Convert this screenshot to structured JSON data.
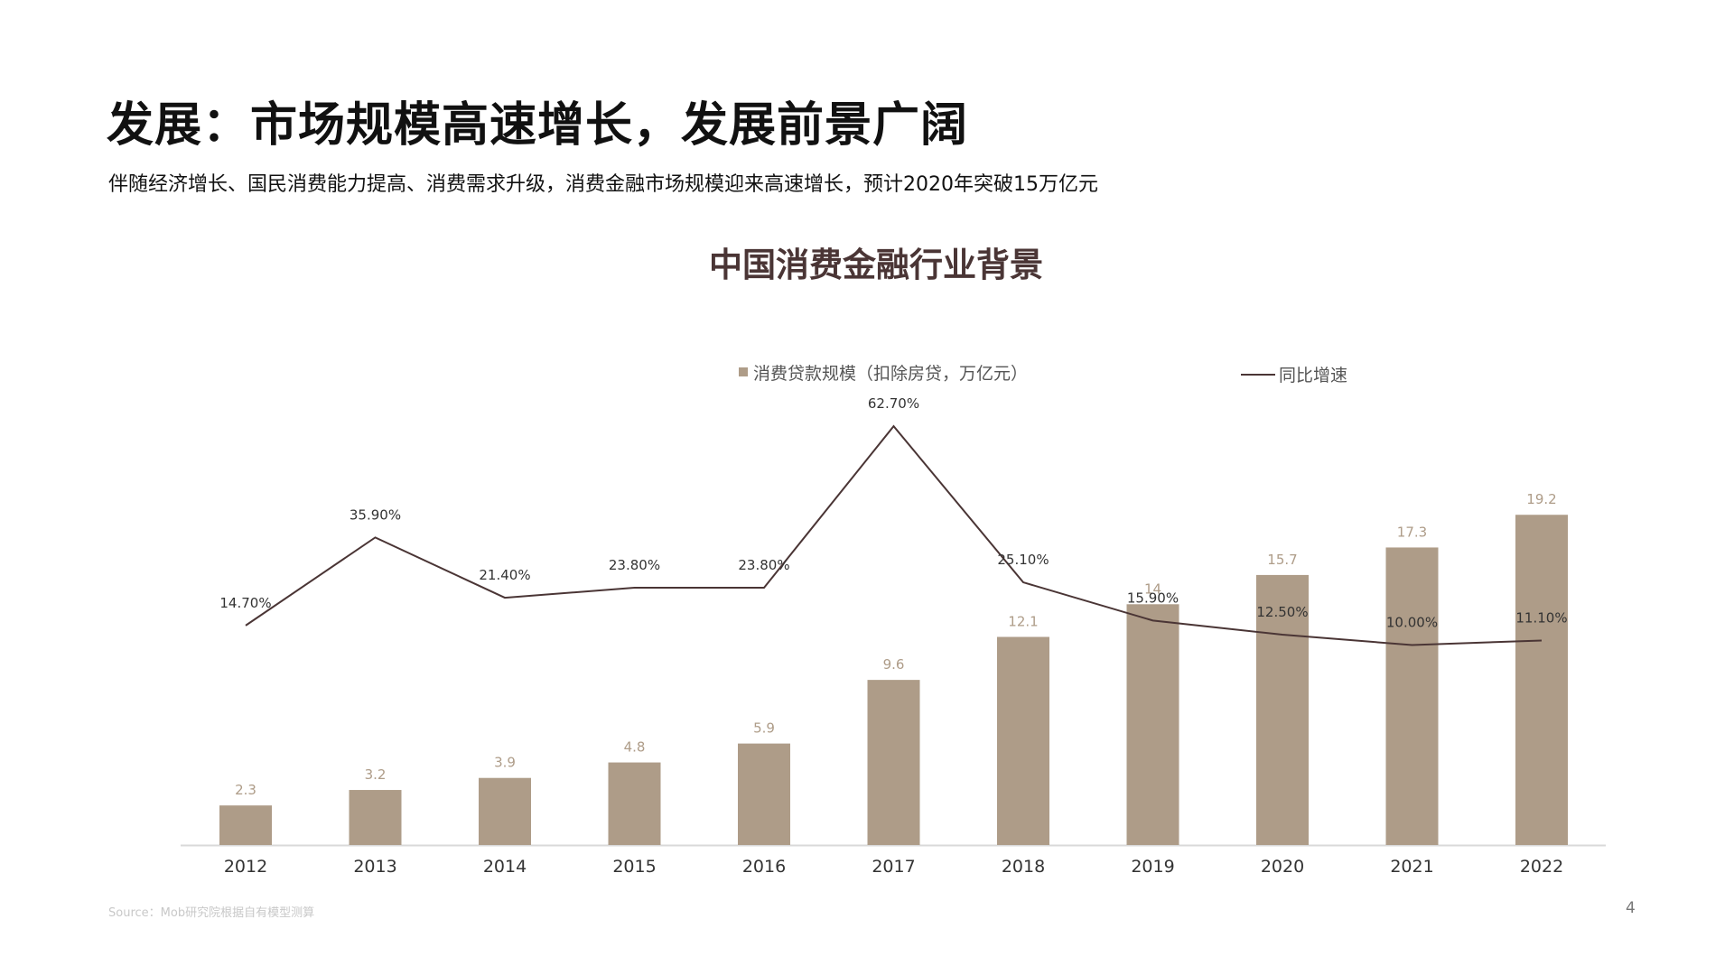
{
  "slide": {
    "title": "发展：市场规模高速增长，发展前景广阔",
    "subtitle": "伴随经济增长、国民消费能力提高、消费需求升级，消费金融市场规模迎来高速增长，预计2020年突破15万亿元",
    "source": "Source：Mob研究院根据自有模型测算",
    "page_number": "4"
  },
  "chart_data": {
    "type": "bar",
    "title": "中国消费金融行业背景",
    "categories": [
      "2012",
      "2013",
      "2014",
      "2015",
      "2016",
      "2017",
      "2018",
      "2019",
      "2020",
      "2021",
      "2022"
    ],
    "series": [
      {
        "name": "消费贷款规模（扣除房贷，万亿元）",
        "type": "bar",
        "values": [
          2.3,
          3.2,
          3.9,
          4.8,
          5.9,
          9.6,
          12.1,
          14,
          15.7,
          17.3,
          19.2
        ],
        "labels": [
          "2.3",
          "3.2",
          "3.9",
          "4.8",
          "5.9",
          "9.6",
          "12.1",
          "14",
          "15.7",
          "17.3",
          "19.2"
        ],
        "color": "#ae9c88"
      },
      {
        "name": "同比增速",
        "type": "line",
        "values": [
          14.7,
          35.9,
          21.4,
          23.8,
          23.8,
          62.7,
          25.1,
          15.9,
          12.5,
          10.0,
          11.1
        ],
        "labels": [
          "14.70%",
          "35.90%",
          "21.40%",
          "23.80%",
          "23.80%",
          "62.70%",
          "25.10%",
          "15.90%",
          "12.50%",
          "10.00%",
          "11.10%"
        ],
        "color": "#4a3535"
      }
    ],
    "xlabel": "",
    "ylabel": "",
    "ylim_bar": [
      0,
      20
    ],
    "ylim_line": [
      0,
      70
    ],
    "legend": "top",
    "grid": false,
    "colors": {
      "bar": "#ae9c88",
      "line": "#4a3535",
      "bar_label": "#ae9c88",
      "line_label": "#333333",
      "axis": "#d9d9d9",
      "tick_label": "#333333",
      "title": "#4a3535"
    }
  }
}
